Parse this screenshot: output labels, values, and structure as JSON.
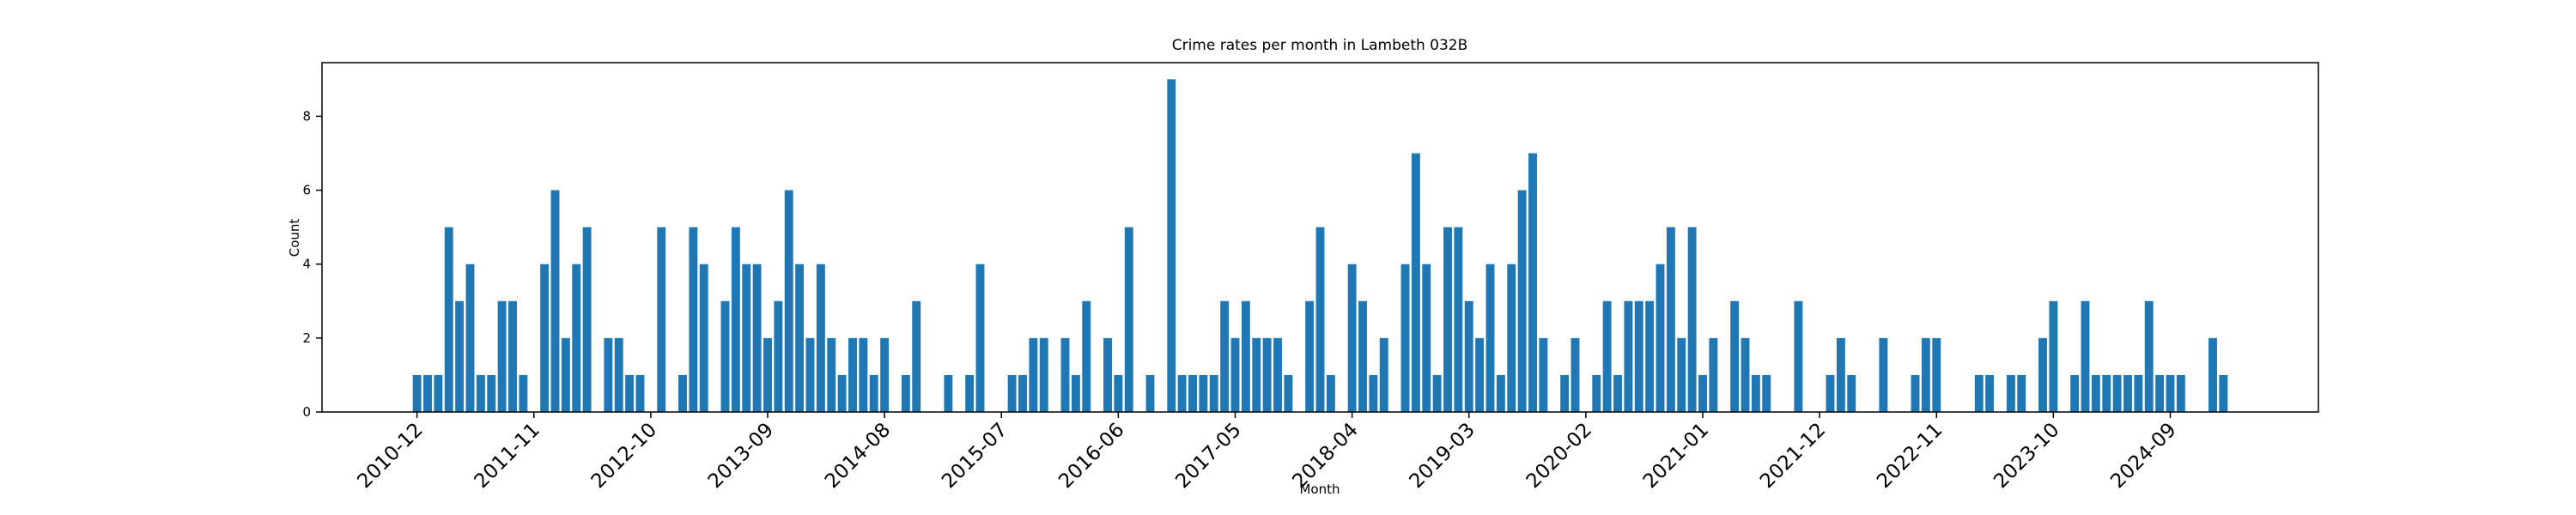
{
  "chart_data": {
    "type": "bar",
    "title": "Crime rates per month in Lambeth 032B",
    "x_label": "Month",
    "y_label": "Count",
    "color": "#1f77b4",
    "categories": [
      "2010-12",
      null,
      null,
      null,
      null,
      null,
      null,
      null,
      null,
      null,
      null,
      "2011-11",
      null,
      null,
      null,
      null,
      null,
      null,
      null,
      null,
      null,
      null,
      "2012-10",
      null,
      null,
      null,
      null,
      null,
      null,
      null,
      null,
      null,
      null,
      "2013-09",
      null,
      null,
      null,
      null,
      null,
      null,
      null,
      null,
      null,
      null,
      "2014-08",
      null,
      null,
      null,
      null,
      null,
      null,
      null,
      null,
      null,
      null,
      "2015-07",
      null,
      null,
      null,
      null,
      null,
      null,
      null,
      null,
      null,
      null,
      "2016-06",
      null,
      null,
      null,
      null,
      null,
      null,
      null,
      null,
      null,
      null,
      "2017-05",
      null,
      null,
      null,
      null,
      null,
      null,
      null,
      null,
      null,
      null,
      "2018-04",
      null,
      null,
      null,
      null,
      null,
      null,
      null,
      null,
      null,
      null,
      "2019-03",
      null,
      null,
      null,
      null,
      null,
      null,
      null,
      null,
      null,
      null,
      "2020-02",
      null,
      null,
      null,
      null,
      null,
      null,
      null,
      null,
      null,
      null,
      "2021-01",
      null,
      null,
      null,
      null,
      null,
      null,
      null,
      null,
      null,
      null,
      "2021-12",
      null,
      null,
      null,
      null,
      null,
      null,
      null,
      null,
      null,
      null,
      "2022-11",
      null,
      null,
      null,
      null,
      null,
      null,
      null,
      null,
      null,
      null,
      "2023-10",
      null,
      null,
      null,
      null,
      null,
      null,
      null,
      null,
      null,
      null,
      "2024-09",
      null,
      null,
      null,
      null,
      null
    ],
    "values": [
      1,
      1,
      1,
      5,
      3,
      4,
      1,
      1,
      3,
      3,
      1,
      0,
      4,
      6,
      2,
      4,
      5,
      0,
      2,
      2,
      1,
      1,
      0,
      5,
      0,
      1,
      5,
      4,
      0,
      3,
      5,
      4,
      4,
      2,
      3,
      6,
      4,
      2,
      4,
      2,
      1,
      2,
      2,
      1,
      2,
      0,
      1,
      3,
      0,
      0,
      1,
      0,
      1,
      4,
      0,
      0,
      1,
      1,
      2,
      2,
      0,
      2,
      1,
      3,
      0,
      2,
      1,
      5,
      0,
      1,
      0,
      9,
      1,
      1,
      1,
      1,
      3,
      2,
      3,
      2,
      2,
      2,
      1,
      0,
      3,
      5,
      1,
      0,
      4,
      3,
      1,
      2,
      0,
      4,
      7,
      4,
      1,
      5,
      5,
      3,
      2,
      4,
      1,
      4,
      6,
      7,
      2,
      0,
      1,
      2,
      0,
      1,
      3,
      1,
      3,
      3,
      3,
      4,
      5,
      2,
      5,
      1,
      2,
      0,
      3,
      2,
      1,
      1,
      0,
      0,
      3,
      0,
      0,
      1,
      2,
      1,
      0,
      0,
      2,
      0,
      0,
      1,
      2,
      2,
      0,
      0,
      0,
      1,
      1,
      0,
      1,
      1,
      0,
      2,
      3,
      0,
      1,
      3,
      1,
      1,
      1,
      1,
      1,
      3,
      1,
      1,
      1,
      0,
      0,
      2,
      1
    ],
    "ylim": [
      0,
      9.45
    ],
    "yticks": [
      0,
      2,
      4,
      6,
      8
    ]
  }
}
